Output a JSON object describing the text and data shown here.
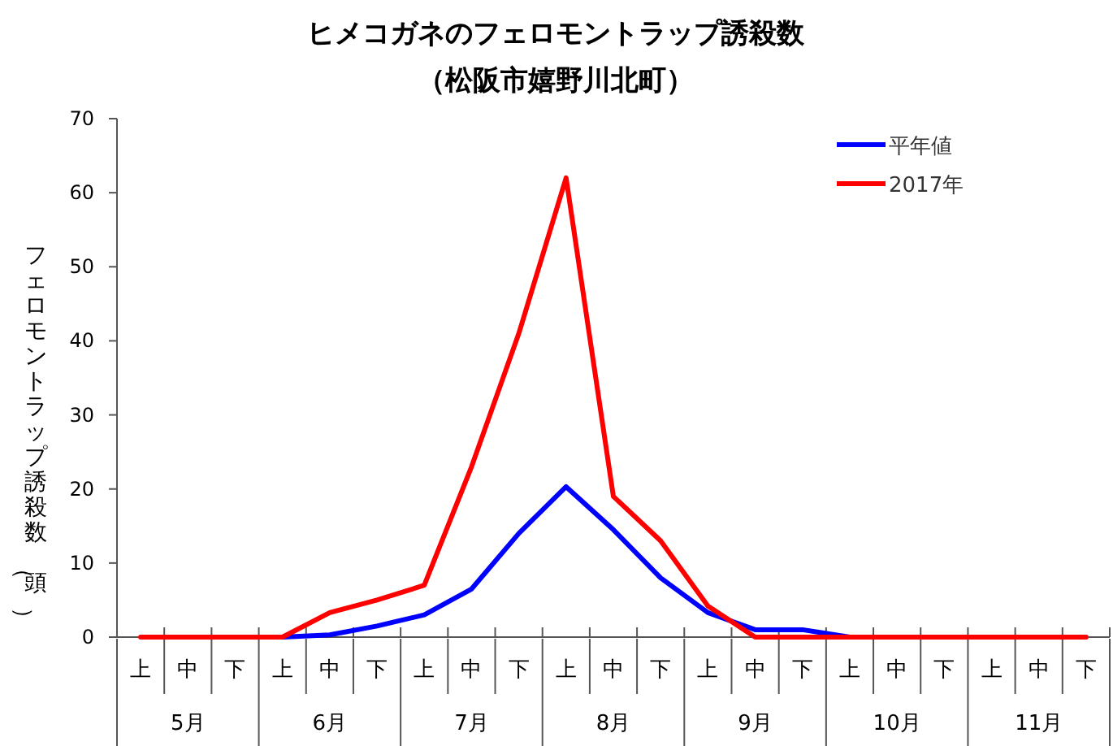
{
  "chart_data": {
    "type": "line",
    "title": "ヒメコガネのフェロモントラップ誘殺数",
    "subtitle": "（松阪市嬉野川北町）",
    "ylabel": "フェロモントラップ誘殺数（頭）",
    "categories": [
      "上",
      "中",
      "下",
      "上",
      "中",
      "下",
      "上",
      "中",
      "下",
      "上",
      "中",
      "下",
      "上",
      "中",
      "下",
      "上",
      "中",
      "下",
      "上",
      "中",
      "下"
    ],
    "annotations": [
      "5月",
      "6月",
      "7月",
      "8月",
      "9月",
      "10月",
      "11月"
    ],
    "series": [
      {
        "name": "平年値",
        "color": "#0000ff",
        "values": [
          null,
          null,
          null,
          0,
          0.3,
          1.5,
          3,
          6.5,
          14,
          20.3,
          14.5,
          8,
          3.3,
          1,
          1,
          0,
          0,
          null,
          null,
          null,
          null
        ]
      },
      {
        "name": "2017年",
        "color": "#ff0000",
        "values": [
          0,
          0,
          0,
          0,
          3.3,
          5,
          7,
          23,
          41,
          62,
          19,
          13,
          4.2,
          0,
          0,
          0,
          0,
          0,
          0,
          0,
          0
        ]
      }
    ],
    "ylim": [
      0,
      70
    ],
    "yticks": [
      0,
      10,
      20,
      30,
      40,
      50,
      60,
      70
    ],
    "grid": false,
    "legend": "top right",
    "marker": "none",
    "line_style": "solid"
  }
}
